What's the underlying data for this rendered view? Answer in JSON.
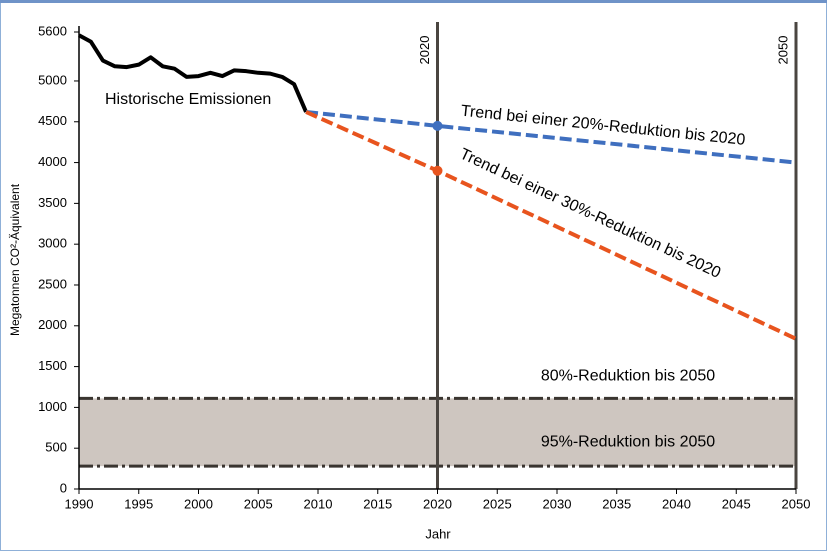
{
  "chart_data": {
    "type": "line",
    "x_label": "Jahr",
    "y_label": "Megatonnen CO²-Äquivalent",
    "xlim": [
      1990,
      2050
    ],
    "ylim": [
      0,
      5600
    ],
    "xticks": [
      1990,
      1995,
      2000,
      2005,
      2010,
      2015,
      2020,
      2025,
      2030,
      2035,
      2040,
      2045,
      2050
    ],
    "yticks": [
      0,
      500,
      1000,
      1500,
      2000,
      2500,
      3000,
      3500,
      4000,
      4500,
      5000,
      5600
    ],
    "series": [
      {
        "name": "Historische Emissionen",
        "color": "#000000",
        "dashed": false,
        "x": [
          1990,
          1991,
          1992,
          1993,
          1994,
          1995,
          1996,
          1997,
          1998,
          1999,
          2000,
          2001,
          2002,
          2003,
          2004,
          2005,
          2006,
          2007,
          2008,
          2009
        ],
        "values": [
          5560,
          5480,
          5250,
          5180,
          5170,
          5200,
          5290,
          5180,
          5150,
          5050,
          5060,
          5100,
          5060,
          5130,
          5120,
          5100,
          5090,
          5050,
          4960,
          4620
        ]
      },
      {
        "name": "Trend bei einer 20%-Reduktion bis 2020",
        "color": "#3f6fbf",
        "dashed": true,
        "x": [
          2009,
          2020,
          2050
        ],
        "values": [
          4620,
          4450,
          4000
        ]
      },
      {
        "name": "Trend bei einer 30%-Reduktion bis 2020",
        "color": "#e8541e",
        "dashed": true,
        "x": [
          2009,
          2020,
          2050
        ],
        "values": [
          4620,
          3900,
          1840
        ]
      }
    ],
    "vlines": [
      2020,
      2050
    ],
    "bands": [
      {
        "name": "80%-Reduktion bis 2050",
        "value": 1110
      },
      {
        "name": "95%-Reduktion bis 2050",
        "value": 280
      }
    ]
  }
}
